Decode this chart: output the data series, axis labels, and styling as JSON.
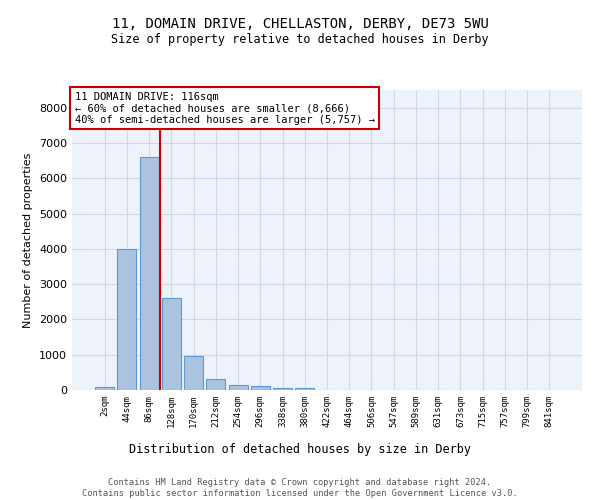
{
  "title1": "11, DOMAIN DRIVE, CHELLASTON, DERBY, DE73 5WU",
  "title2": "Size of property relative to detached houses in Derby",
  "xlabel": "Distribution of detached houses by size in Derby",
  "ylabel": "Number of detached properties",
  "footer1": "Contains HM Land Registry data © Crown copyright and database right 2024.",
  "footer2": "Contains public sector information licensed under the Open Government Licence v3.0.",
  "categories": [
    "2sqm",
    "44sqm",
    "86sqm",
    "128sqm",
    "170sqm",
    "212sqm",
    "254sqm",
    "296sqm",
    "338sqm",
    "380sqm",
    "422sqm",
    "464sqm",
    "506sqm",
    "547sqm",
    "589sqm",
    "631sqm",
    "673sqm",
    "715sqm",
    "757sqm",
    "799sqm",
    "841sqm"
  ],
  "values": [
    80,
    4000,
    6600,
    2600,
    960,
    320,
    130,
    100,
    70,
    60,
    0,
    0,
    0,
    0,
    0,
    0,
    0,
    0,
    0,
    0,
    0
  ],
  "bar_color": "#aac4e0",
  "bar_edgecolor": "#5b9bd5",
  "grid_color": "#d0d8e8",
  "bg_color": "#eef2fa",
  "vline_color": "#cc0000",
  "vline_pos": 2.5,
  "annotation_text": "11 DOMAIN DRIVE: 116sqm\n← 60% of detached houses are smaller (8,666)\n40% of semi-detached houses are larger (5,757) →",
  "annotation_box_color": "#ffffff",
  "annotation_box_edgecolor": "#cc0000",
  "ylim": [
    0,
    8500
  ],
  "yticks": [
    0,
    1000,
    2000,
    3000,
    4000,
    5000,
    6000,
    7000,
    8000
  ]
}
